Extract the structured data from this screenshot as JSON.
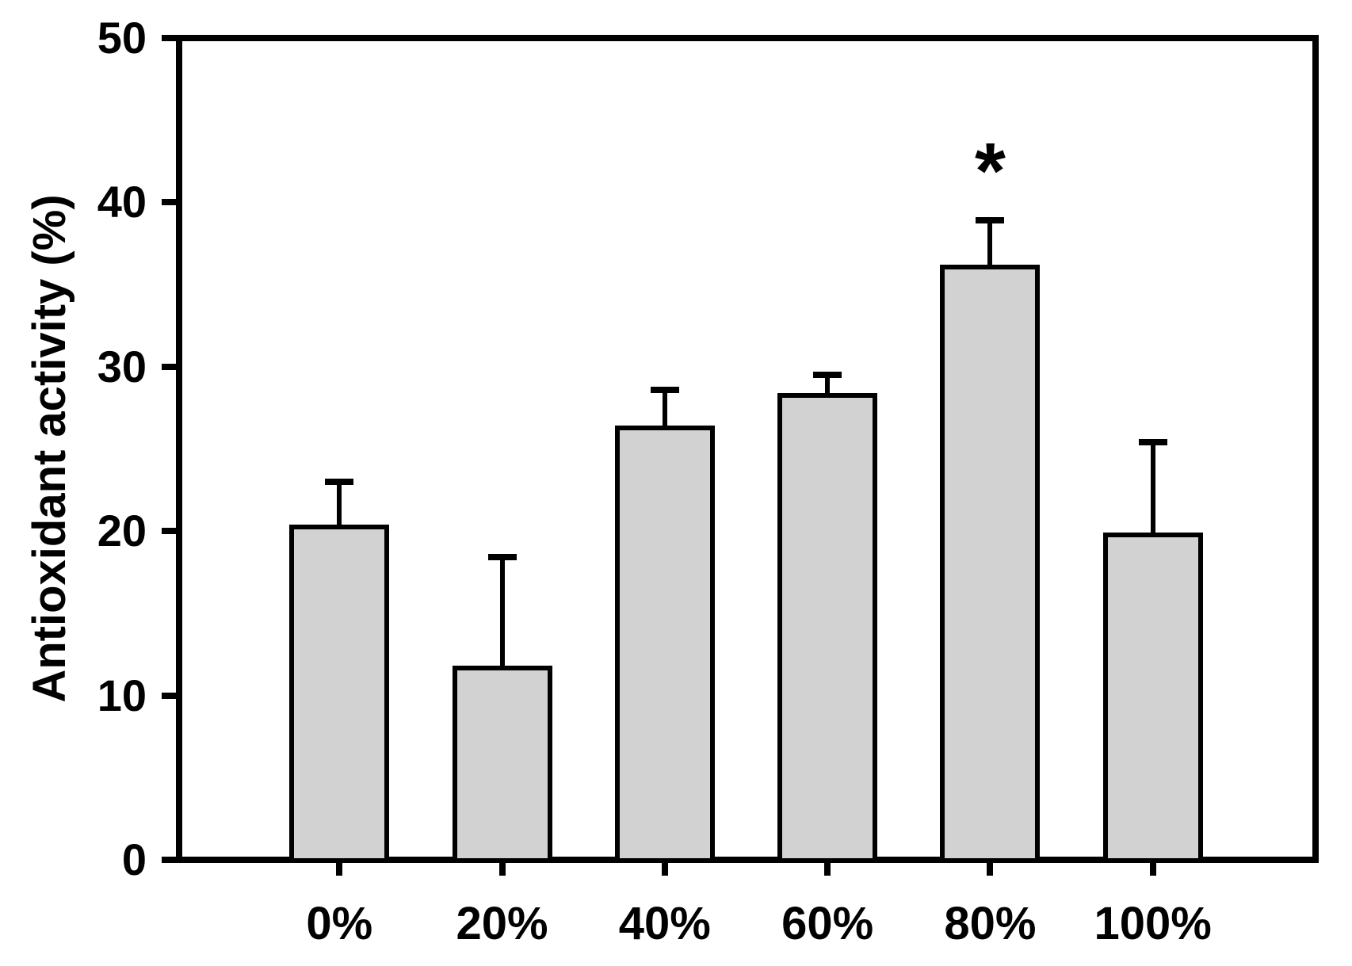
{
  "chart_data": {
    "type": "bar",
    "title": "",
    "xlabel": "",
    "ylabel": "Antioxidant activity (%)",
    "categories": [
      "0%",
      "20%",
      "40%",
      "60%",
      "80%",
      "100%"
    ],
    "values": [
      20.4,
      11.8,
      26.4,
      28.4,
      36.2,
      19.9
    ],
    "errors_upper": [
      2.6,
      6.6,
      2.2,
      1.1,
      2.7,
      5.5
    ],
    "ylim": [
      0,
      50
    ],
    "yticks": [
      0,
      10,
      20,
      30,
      40,
      50
    ],
    "grid": "off",
    "legend": "none",
    "bar_fill_color": "#d2d2d2",
    "bar_border_color": "#000000",
    "axis_color": "#000000",
    "annotations": [
      {
        "category": "80%",
        "text": "*"
      }
    ]
  }
}
